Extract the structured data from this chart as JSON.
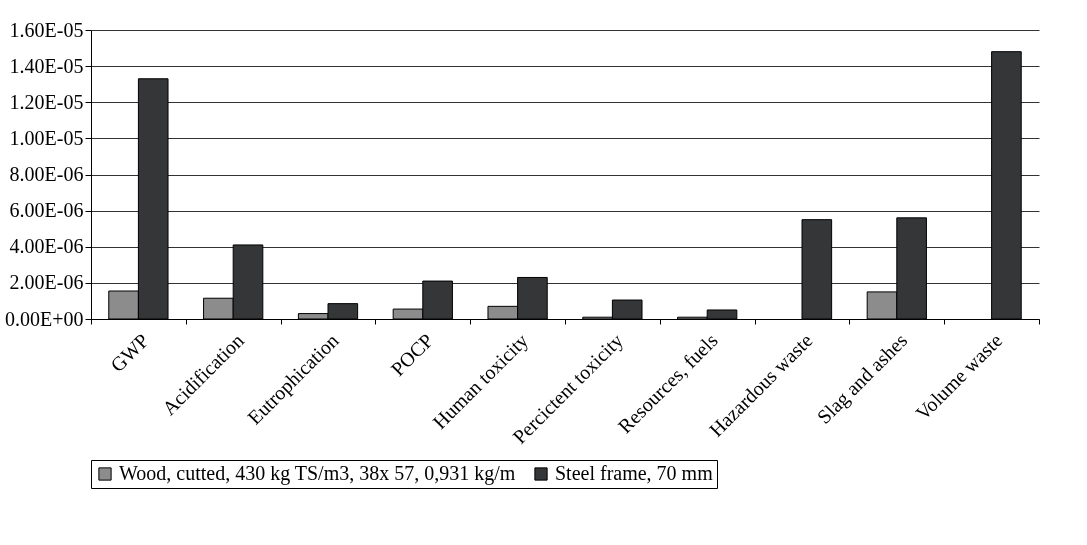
{
  "chart_data": {
    "type": "bar",
    "categories": [
      "GWP",
      "Acidification",
      "Eutrophication",
      "POCP",
      "Human toxicity",
      "Percictent toxicity",
      "Resources, fuels",
      "Hazardous waste",
      "Slag and ashes",
      "Volume waste"
    ],
    "series": [
      {
        "name": "Wood, cutted, 430 kg TS/m3,  38x 57, 0,931 kg/m",
        "color": "#8c8c8c",
        "values": [
          1.55e-06,
          1.15e-06,
          3e-07,
          5.5e-07,
          7e-07,
          1e-07,
          1e-07,
          null,
          1.5e-06,
          null
        ]
      },
      {
        "name": "Steel frame, 70 mm",
        "color": "#353637",
        "values": [
          1.33e-05,
          4.1e-06,
          8.5e-07,
          2.1e-06,
          2.3e-06,
          1.05e-06,
          5e-07,
          5.5e-06,
          5.6e-06,
          1.48e-05
        ]
      }
    ],
    "ylim": [
      0,
      1.6e-05
    ],
    "yticks": [
      {
        "value": 0,
        "label": "0.00E+00"
      },
      {
        "value": 2e-06,
        "label": "2.00E-06"
      },
      {
        "value": 4e-06,
        "label": "4.00E-06"
      },
      {
        "value": 6e-06,
        "label": "6.00E-06"
      },
      {
        "value": 8e-06,
        "label": "8.00E-06"
      },
      {
        "value": 1e-05,
        "label": "1.00E-05"
      },
      {
        "value": 1.2e-05,
        "label": "1.20E-05"
      },
      {
        "value": 1.4e-05,
        "label": "1.40E-05"
      },
      {
        "value": 1.6e-05,
        "label": "1.60E-05"
      }
    ],
    "grid": "y",
    "legend": "bottom"
  }
}
